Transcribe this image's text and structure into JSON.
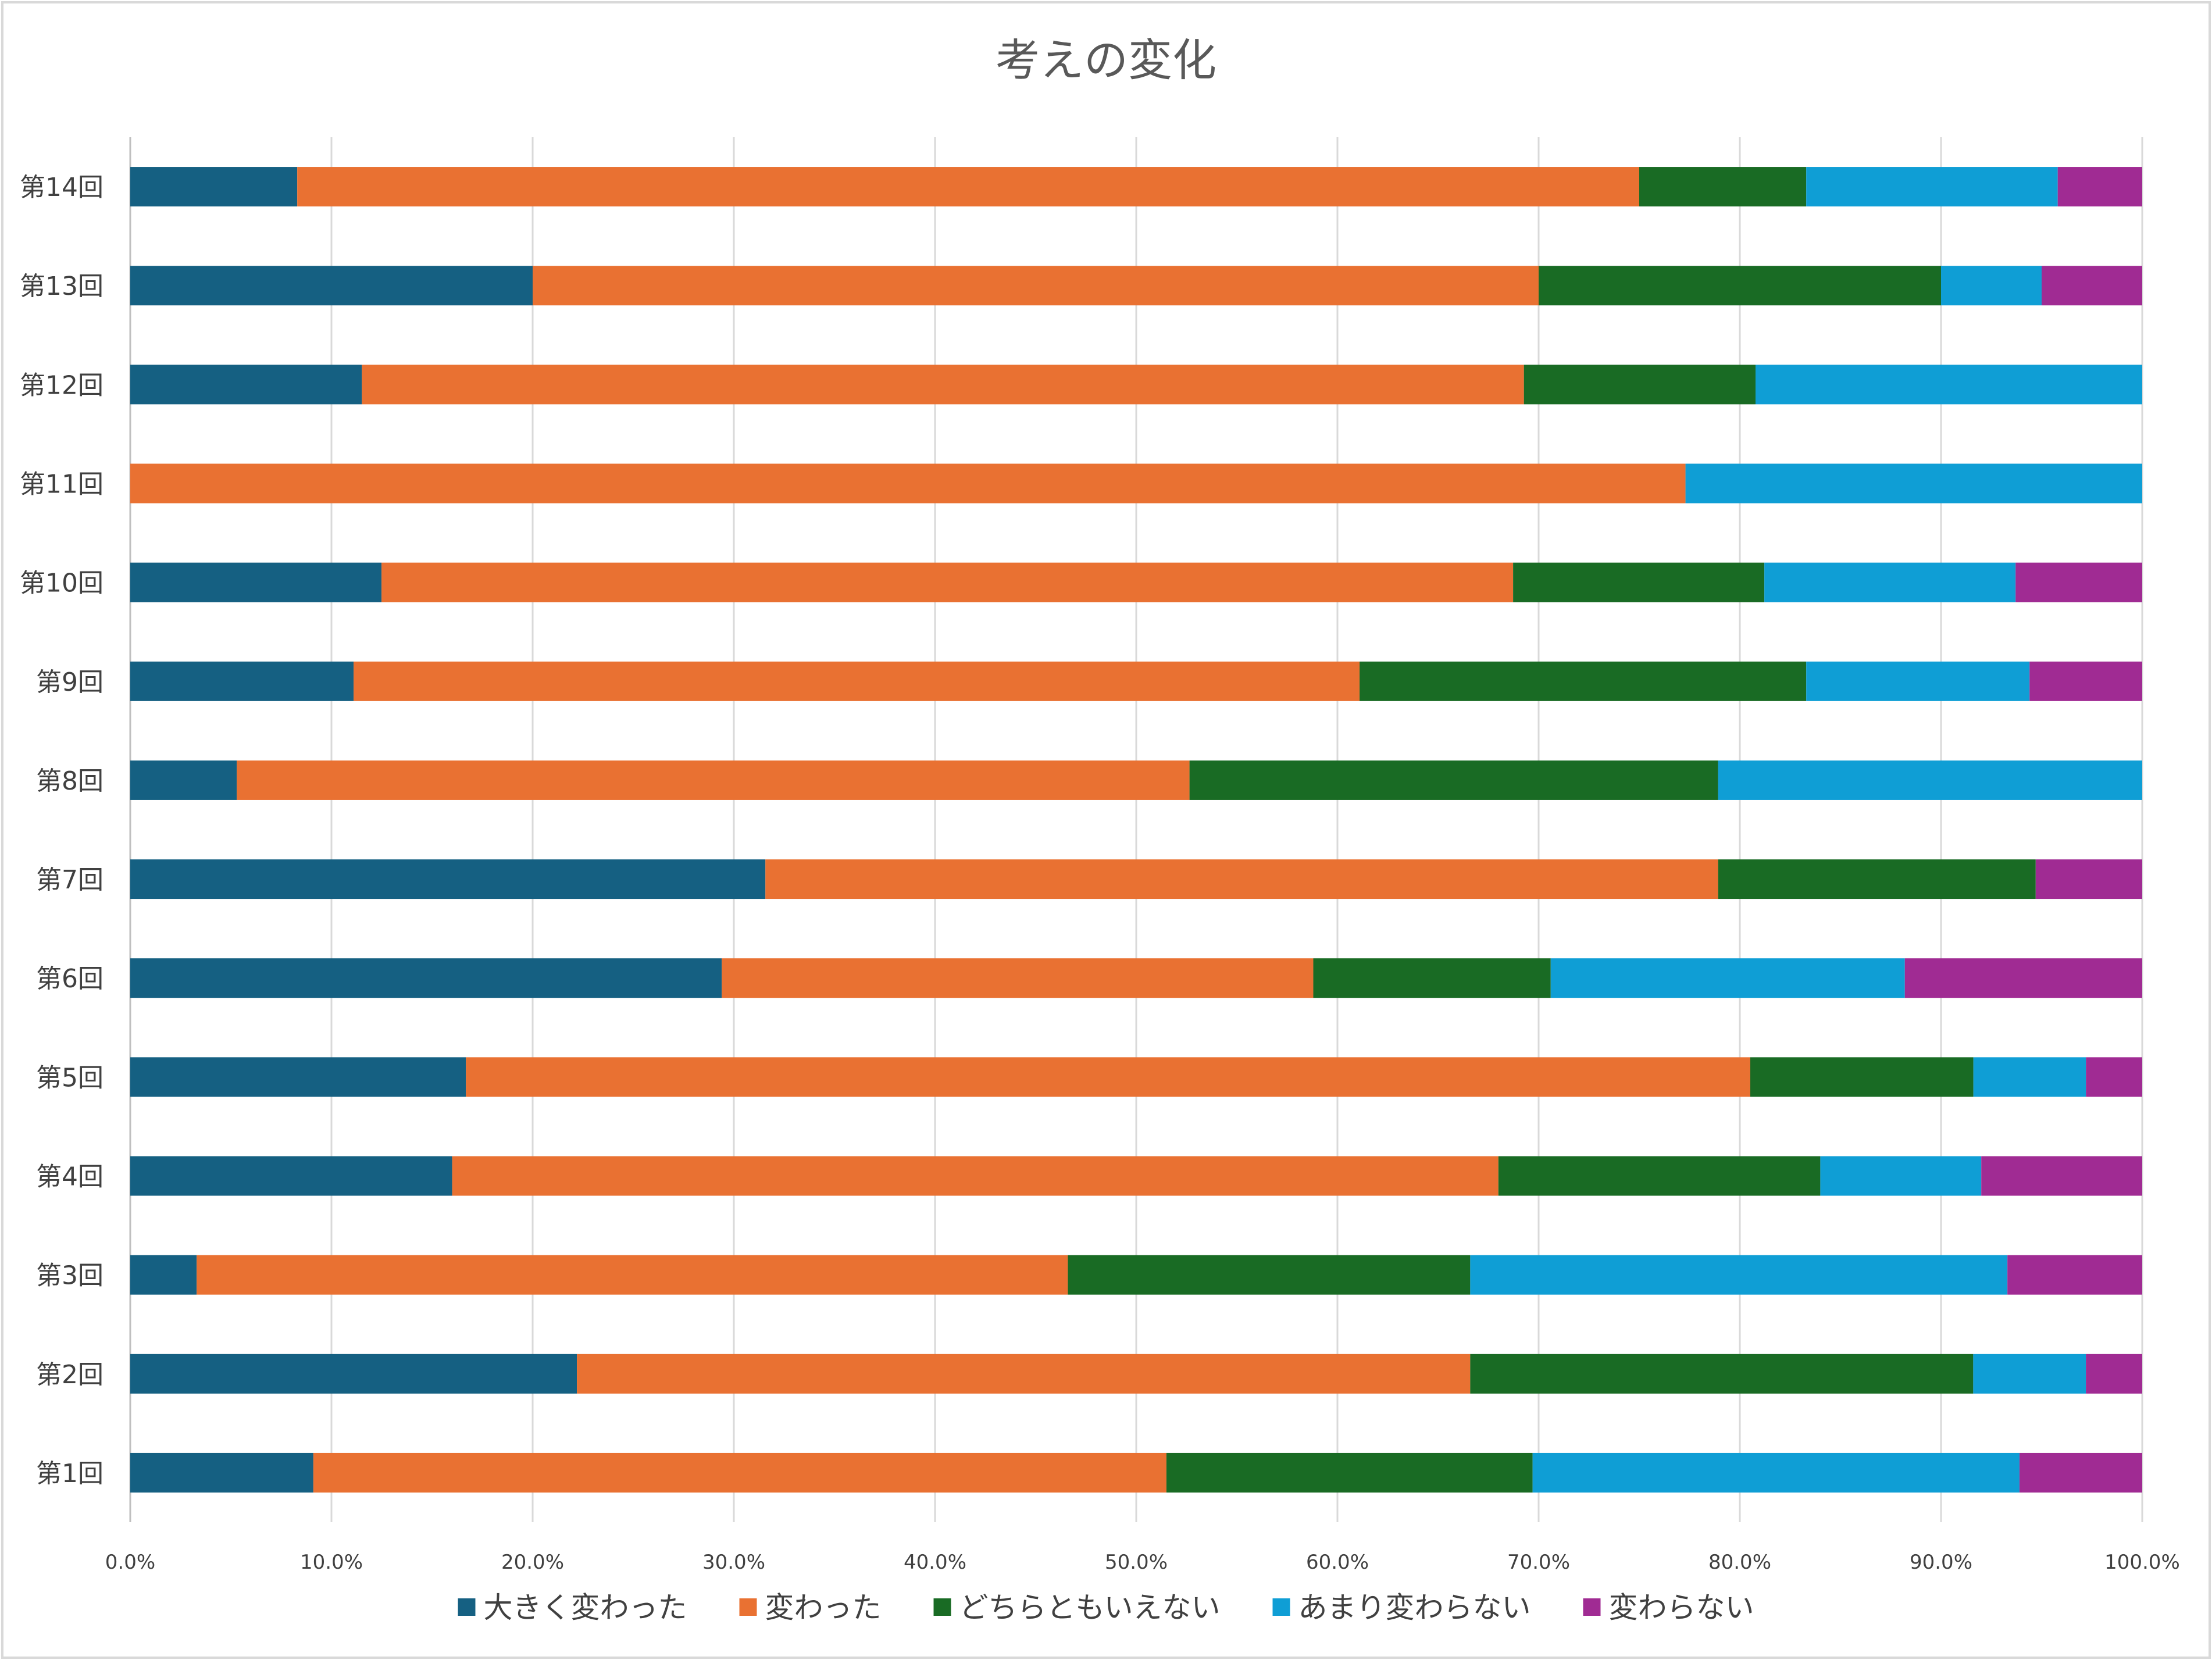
{
  "chart_data": {
    "type": "bar",
    "orientation": "horizontal",
    "stacked": "percent",
    "title": "考えの変化",
    "categories": [
      "第1回",
      "第2回",
      "第3回",
      "第4回",
      "第5回",
      "第6回",
      "第7回",
      "第8回",
      "第9回",
      "第10回",
      "第11回",
      "第12回",
      "第13回",
      "第14回"
    ],
    "series": [
      {
        "name": "大きく変わった",
        "color": "#156082",
        "values": [
          9.1,
          22.2,
          3.3,
          16.0,
          16.7,
          29.4,
          31.6,
          5.3,
          11.1,
          12.5,
          0,
          11.5,
          20.0,
          8.3
        ]
      },
      {
        "name": "変わった",
        "color": "#E97132",
        "values": [
          42.4,
          44.4,
          43.3,
          52.0,
          63.9,
          29.4,
          47.4,
          47.4,
          50.0,
          56.3,
          77.3,
          57.7,
          50.0,
          66.7
        ]
      },
      {
        "name": "どちらともいえない",
        "color": "#196B24",
        "values": [
          18.2,
          25.0,
          20.0,
          16.0,
          11.1,
          11.8,
          15.8,
          26.3,
          22.2,
          12.5,
          0,
          11.5,
          20.0,
          8.3
        ]
      },
      {
        "name": "あまり変わらない",
        "color": "#0F9ED5",
        "values": [
          24.2,
          5.6,
          26.7,
          8.0,
          5.6,
          17.6,
          0,
          21.1,
          11.1,
          12.5,
          22.7,
          19.2,
          5.0,
          12.5
        ]
      },
      {
        "name": "変わらない",
        "color": "#A02B93",
        "values": [
          6.1,
          2.8,
          6.7,
          8.0,
          2.8,
          11.8,
          5.3,
          0,
          5.6,
          6.3,
          0,
          0,
          5.0,
          4.2
        ]
      }
    ],
    "x_ticks": [
      "0.0%",
      "10.0%",
      "20.0%",
      "30.0%",
      "40.0%",
      "50.0%",
      "60.0%",
      "70.0%",
      "80.0%",
      "90.0%",
      "100.0%"
    ],
    "xlim": [
      0,
      100
    ],
    "grid": "vertical",
    "legend": "bottom"
  }
}
